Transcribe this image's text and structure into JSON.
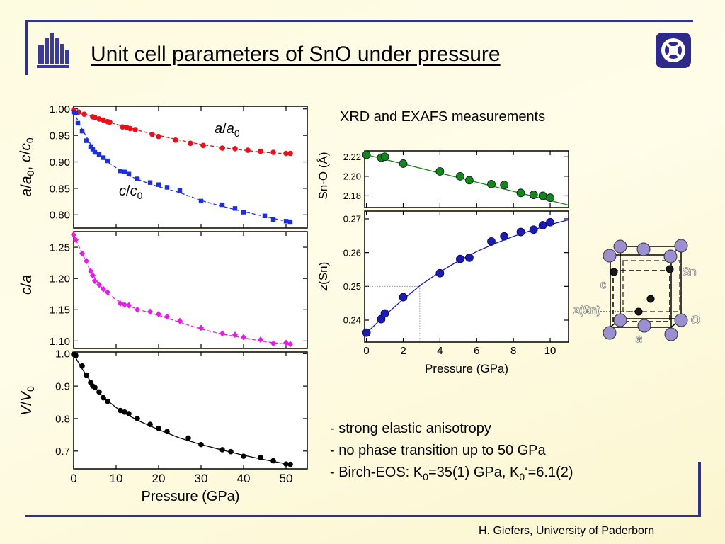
{
  "slide": {
    "title": "Unit cell parameters of SnO under pressure",
    "subtitle": "XRD and EXAFS measurements",
    "footer": "H. Giefers, University of Paderborn",
    "bullets": [
      {
        "parts": [
          {
            "t": "- strong elastic anisotropy"
          }
        ]
      },
      {
        "parts": [
          {
            "t": "- no phase transition up to 50 GPa"
          }
        ]
      },
      {
        "parts": [
          {
            "t": "- Birch-EOS: K"
          },
          {
            "t": "0",
            "sub": true
          },
          {
            "t": "=35(1) GPa, K"
          },
          {
            "t": "0",
            "sub": true
          },
          {
            "t": "‘=6.1(2)"
          }
        ]
      }
    ],
    "logo_left_icon": "university-logo-icon",
    "logo_right_icon": "institute-logo-icon",
    "colors": {
      "frame": "#2e3192",
      "a_series": "#e8101a",
      "c_series": "#1c2ee0",
      "ca_series": "#e81ce8",
      "v_series": "#000000",
      "sno_series": "#118a11",
      "z_series": "#1a1ab4",
      "atom_o": "#9b8fd0",
      "atom_sn": "#1a1a1a"
    }
  },
  "chart_data": [
    {
      "id": "lattice",
      "type": "scatter",
      "xlabel": "",
      "ylabel": [
        {
          "t": "a",
          "i": true
        },
        {
          "t": "/"
        },
        {
          "t": "a",
          "i": true
        },
        {
          "t": "0",
          "sub": true
        },
        {
          "t": ", "
        },
        {
          "t": "c",
          "i": true
        },
        {
          "t": "/"
        },
        {
          "t": "c",
          "i": true
        },
        {
          "t": "0",
          "sub": true
        }
      ],
      "xlim": [
        0,
        55
      ],
      "ylim": [
        0.775,
        1.005
      ],
      "xticks": [
        0,
        10,
        20,
        30,
        40,
        50
      ],
      "xtick_labels": false,
      "yticks": [
        0.8,
        0.85,
        0.9,
        0.95,
        1.0
      ],
      "ytick_labels": [
        "0.80",
        "0.85",
        "0.90",
        "0.95",
        "1.00"
      ],
      "series": [
        {
          "name": "a/a0",
          "label": [
            {
              "t": "a",
              "i": true
            },
            {
              "t": "/"
            },
            {
              "t": "a",
              "i": true
            },
            {
              "t": "0",
              "sub": true
            }
          ],
          "color": "#e8101a",
          "marker": "circle",
          "x": [
            0,
            1.2,
            2.5,
            4.5,
            5,
            6,
            7,
            8,
            8.5,
            11.5,
            12.5,
            13.3,
            14.5,
            18.5,
            20,
            24,
            27.5,
            30.5,
            35,
            38,
            41,
            44,
            47,
            50,
            51
          ],
          "y": [
            0.998,
            0.994,
            0.99,
            0.985,
            0.984,
            0.981,
            0.979,
            0.976,
            0.975,
            0.966,
            0.965,
            0.963,
            0.961,
            0.952,
            0.948,
            0.941,
            0.935,
            0.931,
            0.926,
            0.925,
            0.922,
            0.92,
            0.918,
            0.916,
            0.916
          ],
          "fit_x": [
            0,
            3,
            6,
            10,
            15,
            20,
            25,
            30,
            35,
            40,
            45,
            51
          ],
          "fit_y": [
            0.998,
            0.989,
            0.981,
            0.971,
            0.96,
            0.95,
            0.941,
            0.933,
            0.927,
            0.922,
            0.918,
            0.915
          ]
        },
        {
          "name": "c/c0",
          "label": [
            {
              "t": "c",
              "i": true
            },
            {
              "t": "/"
            },
            {
              "t": "c",
              "i": true
            },
            {
              "t": "0",
              "sub": true
            }
          ],
          "color": "#1c2ee0",
          "marker": "square",
          "x": [
            0,
            0.5,
            1,
            2,
            3,
            4,
            4.5,
            5,
            6,
            7,
            8,
            11,
            12,
            13,
            15,
            18,
            20,
            22,
            25,
            30,
            35,
            38,
            40,
            45,
            47,
            50,
            51
          ],
          "y": [
            0.994,
            0.992,
            0.973,
            0.958,
            0.94,
            0.929,
            0.924,
            0.918,
            0.914,
            0.908,
            0.902,
            0.883,
            0.881,
            0.877,
            0.868,
            0.861,
            0.857,
            0.852,
            0.846,
            0.826,
            0.819,
            0.812,
            0.805,
            0.798,
            0.791,
            0.788,
            0.787
          ],
          "fit_x": [
            0,
            1,
            2,
            4,
            6,
            8,
            10,
            13,
            16,
            20,
            25,
            30,
            35,
            40,
            45,
            51
          ],
          "fit_y": [
            0.994,
            0.978,
            0.962,
            0.933,
            0.913,
            0.9,
            0.889,
            0.874,
            0.864,
            0.853,
            0.842,
            0.827,
            0.816,
            0.806,
            0.797,
            0.786
          ]
        }
      ]
    },
    {
      "id": "ratio",
      "type": "scatter",
      "xlabel": "",
      "ylabel": [
        {
          "t": "c",
          "i": true
        },
        {
          "t": "/"
        },
        {
          "t": "a",
          "i": true
        }
      ],
      "xlim": [
        0,
        55
      ],
      "ylim": [
        1.088,
        1.275
      ],
      "xticks": [
        0,
        10,
        20,
        30,
        40,
        50
      ],
      "xtick_labels": false,
      "yticks": [
        1.1,
        1.15,
        1.2,
        1.25
      ],
      "ytick_labels": [
        "1.10",
        "1.15",
        "1.20",
        "1.25"
      ],
      "series": [
        {
          "name": "c/a",
          "color": "#e81ce8",
          "marker": "diamond",
          "x": [
            0,
            0.5,
            2,
            3,
            4,
            4.5,
            5,
            6,
            7,
            8,
            11,
            12,
            13,
            15,
            18,
            20,
            22,
            25,
            30,
            35,
            38,
            40,
            44,
            47,
            50,
            51
          ],
          "y": [
            1.27,
            1.262,
            1.24,
            1.228,
            1.212,
            1.205,
            1.196,
            1.19,
            1.183,
            1.178,
            1.16,
            1.158,
            1.157,
            1.15,
            1.147,
            1.143,
            1.139,
            1.132,
            1.121,
            1.112,
            1.11,
            1.106,
            1.102,
            1.096,
            1.097,
            1.095
          ],
          "fit_x": [
            0,
            1,
            2,
            4,
            6,
            8,
            10,
            13,
            16,
            20,
            25,
            30,
            35,
            40,
            45,
            51
          ],
          "fit_y": [
            1.27,
            1.255,
            1.24,
            1.212,
            1.19,
            1.176,
            1.166,
            1.156,
            1.149,
            1.141,
            1.13,
            1.119,
            1.111,
            1.105,
            1.099,
            1.094
          ]
        }
      ]
    },
    {
      "id": "volume",
      "type": "scatter",
      "xlabel": "Pressure (GPa)",
      "ylabel": [
        {
          "t": "V",
          "i": true
        },
        {
          "t": "/"
        },
        {
          "t": "V",
          "i": true
        },
        {
          "t": "0",
          "sub": true
        }
      ],
      "xlim": [
        0,
        55
      ],
      "ylim": [
        0.645,
        1.005
      ],
      "xticks": [
        0,
        10,
        20,
        30,
        40,
        50
      ],
      "xtick_labels": [
        "0",
        "10",
        "20",
        "30",
        "40",
        "50"
      ],
      "yticks": [
        0.7,
        0.8,
        0.9,
        1.0
      ],
      "ytick_labels": [
        "0.7",
        "0.8",
        "0.9",
        "1.0"
      ],
      "series": [
        {
          "name": "V/V0",
          "color": "#000000",
          "marker": "circle",
          "x": [
            0,
            0.5,
            2,
            3,
            4,
            4.5,
            5,
            6,
            7,
            8,
            11,
            12,
            13,
            15,
            18,
            20,
            22,
            27,
            30,
            35,
            37,
            40,
            44,
            47,
            50,
            51
          ],
          "y": [
            0.998,
            0.994,
            0.962,
            0.934,
            0.911,
            0.9,
            0.896,
            0.882,
            0.864,
            0.853,
            0.825,
            0.82,
            0.815,
            0.8,
            0.782,
            0.77,
            0.76,
            0.74,
            0.72,
            0.704,
            0.698,
            0.684,
            0.68,
            0.67,
            0.66,
            0.659
          ],
          "fit_x": [
            0,
            2,
            4,
            6,
            8,
            10,
            13,
            16,
            20,
            25,
            30,
            35,
            40,
            45,
            51
          ],
          "fit_y": [
            0.998,
            0.953,
            0.914,
            0.88,
            0.855,
            0.834,
            0.809,
            0.789,
            0.766,
            0.74,
            0.72,
            0.703,
            0.687,
            0.673,
            0.658
          ]
        }
      ]
    },
    {
      "id": "sno",
      "type": "scatter",
      "xlabel": "",
      "ylabel": [
        {
          "t": "Sn-O (Å)"
        }
      ],
      "xlim": [
        -0.1,
        11.0
      ],
      "ylim": [
        2.168,
        2.226
      ],
      "xticks": [
        0,
        2,
        4,
        6,
        8,
        10
      ],
      "xtick_labels": false,
      "yticks": [
        2.18,
        2.2,
        2.22
      ],
      "ytick_labels": [
        "2.18",
        "2.20",
        "2.22"
      ],
      "series": [
        {
          "name": "Sn-O",
          "color": "#118a11",
          "marker": "circle",
          "x": [
            0,
            0.8,
            1.0,
            2.0,
            4.0,
            5.1,
            5.6,
            6.8,
            7.5,
            8.4,
            9.1,
            9.6,
            10.0
          ],
          "y": [
            2.222,
            2.219,
            2.22,
            2.213,
            2.205,
            2.2,
            2.196,
            2.192,
            2.191,
            2.183,
            2.181,
            2.18,
            2.178
          ],
          "fit_x": [
            -0.1,
            11.0
          ],
          "fit_y": [
            2.2225,
            2.1705
          ]
        }
      ]
    },
    {
      "id": "zsn",
      "type": "scatter",
      "xlabel": "Pressure (GPa)",
      "ylabel": [
        {
          "t": "z",
          "i": true
        },
        {
          "t": "(Sn)"
        }
      ],
      "xlim": [
        -0.1,
        11.0
      ],
      "ylim": [
        0.2335,
        0.2723
      ],
      "xticks": [
        0,
        2,
        4,
        6,
        8,
        10
      ],
      "xtick_labels": [
        "0",
        "2",
        "4",
        "6",
        "8",
        "10"
      ],
      "yticks": [
        0.24,
        0.25,
        0.26,
        0.27
      ],
      "ytick_labels": [
        "0.24",
        "0.25",
        "0.26",
        "0.27"
      ],
      "guide": {
        "x": 2.9,
        "y": 0.25
      },
      "series": [
        {
          "name": "z(Sn)",
          "color": "#1a1ab4",
          "marker": "circle",
          "x": [
            0,
            0.8,
            1.0,
            2.0,
            4.0,
            5.1,
            5.6,
            6.8,
            7.5,
            8.4,
            9.1,
            9.6,
            10.0
          ],
          "y": [
            0.2363,
            0.2403,
            0.242,
            0.2468,
            0.2539,
            0.2581,
            0.2585,
            0.2633,
            0.2648,
            0.2661,
            0.2668,
            0.2681,
            0.269
          ],
          "fit_x": [
            0,
            1,
            2,
            3,
            4,
            5,
            6,
            7,
            8,
            9,
            10,
            11
          ],
          "fit_y": [
            0.2362,
            0.2414,
            0.2462,
            0.2506,
            0.2543,
            0.2575,
            0.2603,
            0.2627,
            0.2648,
            0.2666,
            0.2683,
            0.2697
          ]
        }
      ]
    }
  ],
  "structure": {
    "labels": {
      "c": "c",
      "a": "a",
      "sn": "Sn",
      "o": "O",
      "zsn": "z(Sn)"
    }
  }
}
